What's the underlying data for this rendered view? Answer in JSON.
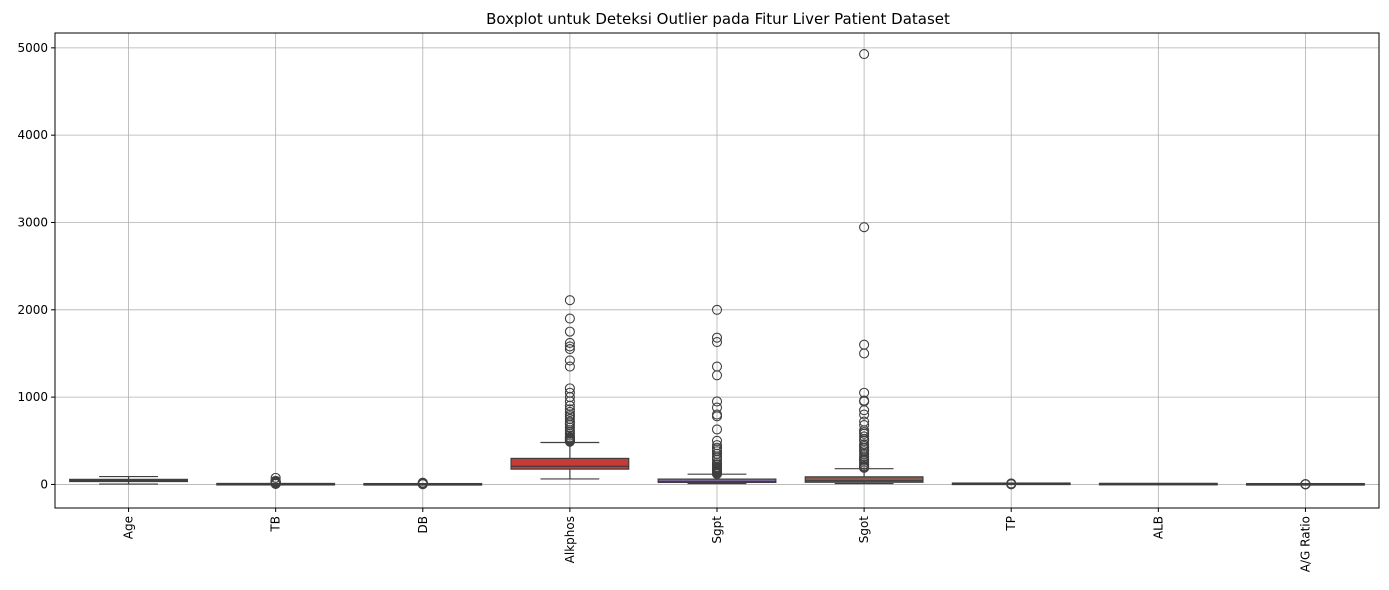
{
  "chart_data": {
    "type": "box",
    "title": "Boxplot untuk Deteksi Outlier pada Fitur Liver Patient Dataset",
    "xlabel": "",
    "ylabel": "",
    "ylim": [
      -270,
      5170
    ],
    "yticks": [
      0,
      1000,
      2000,
      3000,
      4000,
      5000
    ],
    "grid": true,
    "categories": [
      "Age",
      "TB",
      "DB",
      "Alkphos",
      "Sgpt",
      "Sgot",
      "TP",
      "ALB",
      "A/G Ratio"
    ],
    "colors": [
      "#3a6a9e",
      "#e07b2a",
      "#3f9b3f",
      "#c83a36",
      "#8f73b8",
      "#8c5a4e",
      "#d66fb8",
      "#8c8c8c",
      "#b8b52a"
    ],
    "boxes": [
      {
        "name": "Age",
        "whisker_low": 4,
        "q1": 33,
        "median": 45,
        "q3": 58,
        "whisker_high": 90,
        "outliers": []
      },
      {
        "name": "TB",
        "whisker_low": 0.4,
        "q1": 0.8,
        "median": 1.0,
        "q3": 2.6,
        "whisker_high": 5.3,
        "outliers": [
          6,
          8,
          10,
          12,
          15,
          18,
          20,
          22,
          25,
          27,
          30,
          32,
          42,
          75
        ]
      },
      {
        "name": "DB",
        "whisker_low": 0.1,
        "q1": 0.2,
        "median": 0.3,
        "q3": 1.3,
        "whisker_high": 2.9,
        "outliers": [
          3,
          5,
          7,
          10,
          12,
          15,
          19.7
        ]
      },
      {
        "name": "Alkphos",
        "whisker_low": 63,
        "q1": 175,
        "median": 208,
        "q3": 298,
        "whisker_high": 480,
        "outliers": [
          490,
          500,
          510,
          520,
          530,
          540,
          560,
          580,
          600,
          620,
          650,
          680,
          700,
          720,
          750,
          780,
          800,
          830,
          860,
          900,
          950,
          1000,
          1050,
          1100,
          1350,
          1420,
          1550,
          1580,
          1620,
          1750,
          1900,
          2110
        ]
      },
      {
        "name": "Sgpt",
        "whisker_low": 10,
        "q1": 23,
        "median": 35,
        "q3": 61,
        "whisker_high": 117,
        "outliers": [
          120,
          130,
          140,
          150,
          160,
          170,
          180,
          190,
          200,
          220,
          230,
          250,
          280,
          300,
          320,
          350,
          380,
          400,
          420,
          450,
          500,
          630,
          780,
          800,
          880,
          950,
          1250,
          1350,
          1630,
          1680,
          2000
        ]
      },
      {
        "name": "Sgot",
        "whisker_low": 10,
        "q1": 25,
        "median": 42,
        "q3": 87,
        "whisker_high": 180,
        "outliers": [
          190,
          200,
          210,
          230,
          250,
          270,
          285,
          300,
          320,
          350,
          380,
          400,
          420,
          440,
          460,
          500,
          520,
          550,
          580,
          600,
          620,
          680,
          720,
          800,
          850,
          950,
          960,
          1050,
          1500,
          1600,
          2946,
          4929
        ]
      },
      {
        "name": "TP",
        "whisker_low": 3.5,
        "q1": 5.8,
        "median": 6.6,
        "q3": 7.2,
        "whisker_high": 9.3,
        "outliers": [
          2.7,
          2.8,
          9.5,
          9.6
        ]
      },
      {
        "name": "ALB",
        "whisker_low": 0.9,
        "q1": 2.6,
        "median": 3.1,
        "q3": 3.8,
        "whisker_high": 5.5,
        "outliers": []
      },
      {
        "name": "A/G Ratio",
        "whisker_low": 0.3,
        "q1": 0.7,
        "median": 0.93,
        "q3": 1.1,
        "whisker_high": 1.7,
        "outliers": [
          1.8,
          1.9,
          2.5,
          2.8
        ]
      }
    ]
  }
}
